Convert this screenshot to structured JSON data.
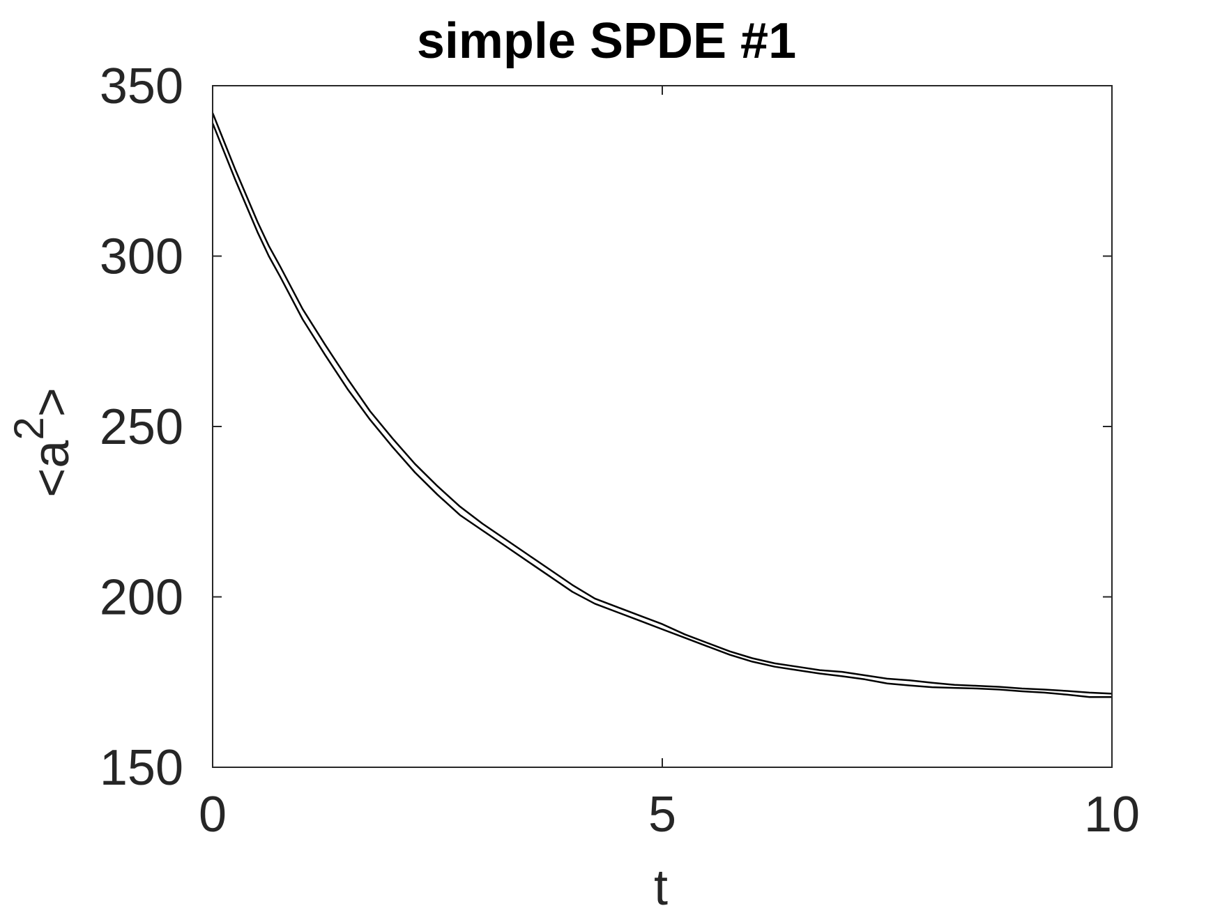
{
  "chart_data": {
    "type": "line",
    "title": "simple SPDE #1",
    "xlabel": "t",
    "ylabel_base": "<a",
    "ylabel_sup": "2",
    "ylabel_close": ">",
    "xlim": [
      0,
      10
    ],
    "ylim": [
      150,
      350
    ],
    "xticks": [
      0,
      5,
      10
    ],
    "xtick_labels": [
      "0",
      "5",
      "10"
    ],
    "yticks": [
      150,
      200,
      250,
      300,
      350
    ],
    "ytick_labels": [
      "150",
      "200",
      "250",
      "300",
      "350"
    ],
    "grid": false,
    "line_color": "#000000",
    "axis_color": "#262626",
    "series": [
      {
        "x": [
          0,
          0.25,
          0.5,
          0.625,
          0.75,
          1,
          1.25,
          1.5,
          1.75,
          2,
          2.25,
          2.5,
          2.75,
          3,
          3.25,
          3.5,
          3.75,
          4,
          4.25,
          4.5,
          4.75,
          5,
          5.25,
          5.5,
          5.75,
          6,
          6.25,
          6.5,
          6.75,
          7,
          7.25,
          7.5,
          7.75,
          8,
          8.25,
          8.5,
          8.75,
          9,
          9.25,
          9.5,
          9.75,
          10
        ],
        "values": [
          342,
          325.5,
          310,
          303,
          297,
          284.5,
          274,
          264,
          254.5,
          246.5,
          239,
          232.5,
          226.5,
          221.5,
          217,
          212.5,
          208,
          203.5,
          199.5,
          197,
          194.5,
          192,
          189,
          186.5,
          184,
          182,
          180.5,
          179.5,
          178.5,
          178,
          177,
          176,
          175.5,
          174.8,
          174.2,
          173.9,
          173.6,
          173.1,
          172.8,
          172.4,
          171.9,
          171.6
        ]
      },
      {
        "x": [
          0,
          0.25,
          0.5,
          0.625,
          0.75,
          1,
          1.25,
          1.5,
          1.75,
          2,
          2.25,
          2.5,
          2.75,
          3,
          3.25,
          3.5,
          3.75,
          4,
          4.25,
          4.5,
          4.75,
          5,
          5.25,
          5.5,
          5.75,
          6,
          6.25,
          6.5,
          6.75,
          7,
          7.25,
          7.5,
          7.75,
          8,
          8.25,
          8.5,
          8.75,
          9,
          9.25,
          9.5,
          9.75,
          10
        ],
        "values": [
          339,
          322.5,
          307,
          300,
          294,
          281.5,
          271,
          261,
          252,
          244,
          236.5,
          230,
          224,
          219.5,
          215,
          210.5,
          206,
          201.5,
          198,
          195.5,
          193,
          190.5,
          188,
          185.5,
          183,
          181,
          179.5,
          178.5,
          177.5,
          176.7,
          175.8,
          174.6,
          174,
          173.5,
          173.3,
          173.1,
          172.8,
          172.3,
          171.9,
          171.3,
          170.6,
          170.6
        ]
      }
    ]
  }
}
